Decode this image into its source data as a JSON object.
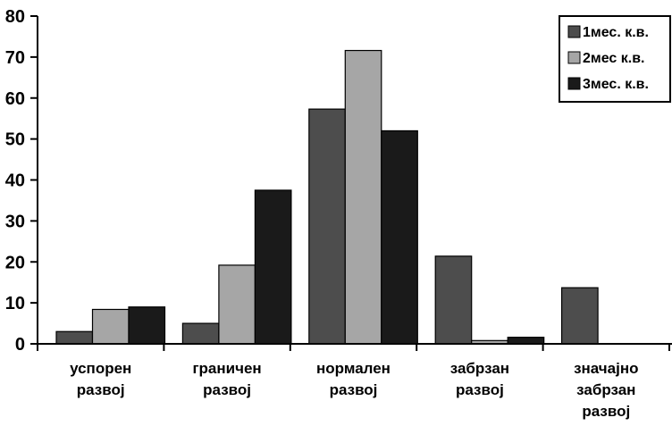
{
  "chart_data": {
    "type": "bar",
    "categories": [
      [
        "успорен",
        "развој"
      ],
      [
        "граничен",
        "развој"
      ],
      [
        "нормален",
        "развој"
      ],
      [
        "забрзан",
        "развој"
      ],
      [
        "значајно",
        "забрзан",
        "развој"
      ]
    ],
    "series": [
      {
        "name": "1мес. к.в.",
        "values": [
          3,
          5,
          57.3,
          21.4,
          13.7
        ],
        "color": "#4d4d4d"
      },
      {
        "name": "2мес к.в.",
        "values": [
          8.4,
          19.2,
          71.6,
          0.8,
          0
        ],
        "color": "#a6a6a6"
      },
      {
        "name": "3мес. к.в.",
        "values": [
          9,
          37.5,
          52,
          1.6,
          0
        ],
        "color": "#1a1a1a"
      }
    ],
    "yticks": [
      "0",
      "10",
      "20",
      "30",
      "40",
      "50",
      "60",
      "70",
      "80"
    ],
    "ylim": [
      0,
      80
    ],
    "grid": false,
    "legend_position": "top-right",
    "title": "",
    "xlabel": "",
    "ylabel": ""
  }
}
